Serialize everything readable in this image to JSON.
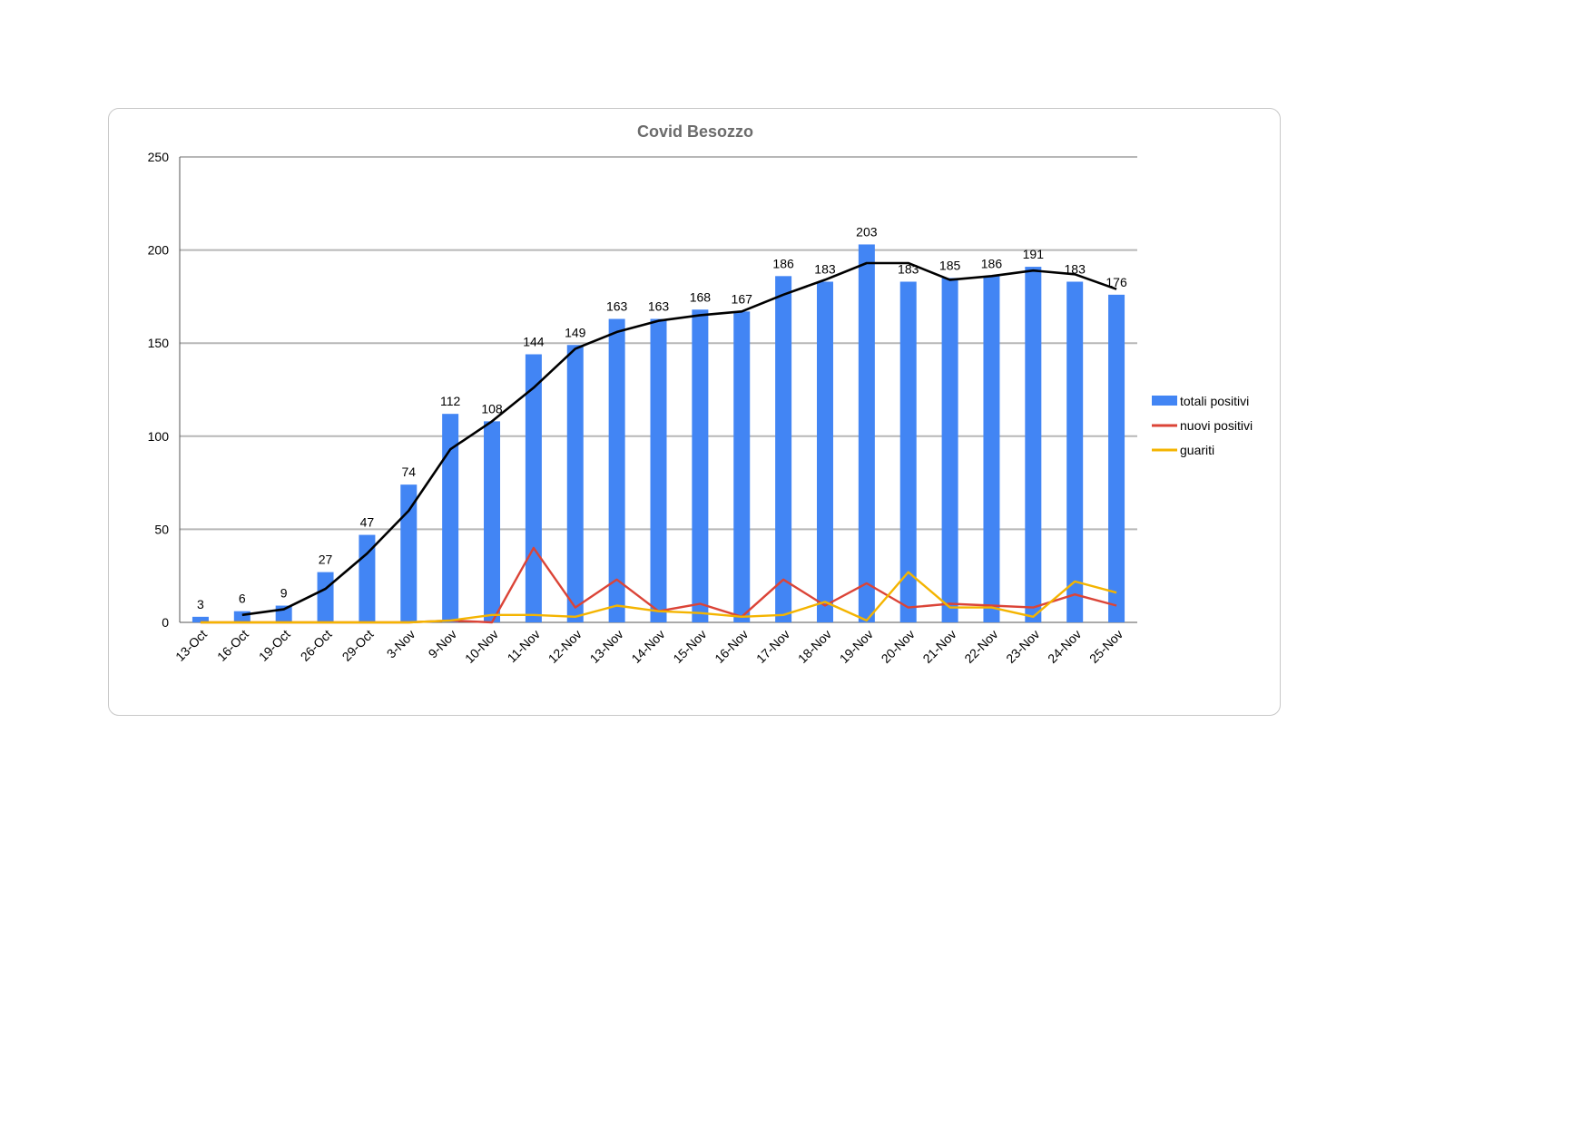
{
  "chart_data": {
    "type": "bar",
    "title": "Covid Besozzo",
    "xlabel": "",
    "ylabel": "",
    "ylim": [
      0,
      250
    ],
    "yticks": [
      0,
      50,
      100,
      150,
      200,
      250
    ],
    "grid": true,
    "legend_position": "right",
    "categories": [
      "13-Oct",
      "16-Oct",
      "19-Oct",
      "26-Oct",
      "29-Oct",
      "3-Nov",
      "9-Nov",
      "10-Nov",
      "11-Nov",
      "12-Nov",
      "13-Nov",
      "14-Nov",
      "15-Nov",
      "16-Nov",
      "17-Nov",
      "18-Nov",
      "19-Nov",
      "20-Nov",
      "21-Nov",
      "22-Nov",
      "23-Nov",
      "24-Nov",
      "25-Nov"
    ],
    "series": [
      {
        "name": "totali positivi",
        "type": "bar",
        "color": "#4285f4",
        "values": [
          3,
          6,
          9,
          27,
          47,
          74,
          112,
          108,
          144,
          149,
          163,
          163,
          168,
          167,
          186,
          183,
          203,
          183,
          185,
          186,
          191,
          183,
          176
        ],
        "data_labels": [
          "3",
          "6",
          "9",
          "27",
          "47",
          "74",
          "112",
          "108",
          "144",
          "149",
          "163",
          "163",
          "168",
          "167",
          "186",
          "183",
          "203",
          "183",
          "185",
          "186",
          "191",
          "183",
          "176"
        ]
      },
      {
        "name": "nuovi positivi",
        "type": "line",
        "color": "#db4437",
        "values": [
          0,
          0,
          0,
          0,
          0,
          0,
          1,
          0,
          40,
          8,
          23,
          6,
          10,
          3,
          23,
          9,
          21,
          8,
          10,
          9,
          8,
          15,
          9
        ]
      },
      {
        "name": "guariti",
        "type": "line",
        "color": "#f4b400",
        "values": [
          0,
          0,
          0,
          0,
          0,
          0,
          1,
          4,
          4,
          3,
          9,
          6,
          5,
          3,
          4,
          11,
          1,
          27,
          8,
          8,
          3,
          22,
          16
        ]
      },
      {
        "name": "",
        "type": "line",
        "color": "#000000",
        "values": [
          null,
          4,
          7,
          18,
          37,
          60,
          93,
          108,
          126,
          147,
          156,
          162,
          165,
          167,
          176,
          184,
          193,
          193,
          184,
          186,
          189,
          187,
          179
        ]
      }
    ]
  }
}
